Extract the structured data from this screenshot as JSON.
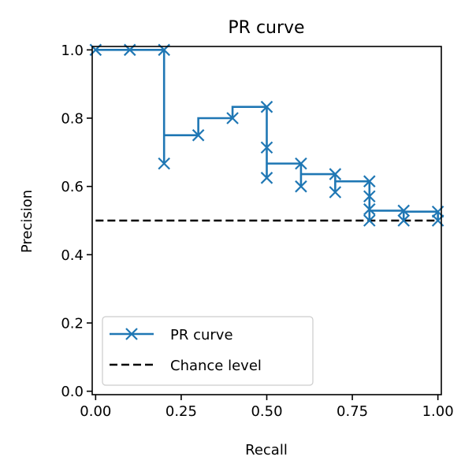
{
  "chart_data": {
    "type": "line",
    "title": "PR curve",
    "xlabel": "Recall",
    "ylabel": "Precision",
    "xlim": [
      -0.01,
      1.01
    ],
    "ylim": [
      -0.01,
      1.01
    ],
    "xticks": [
      0.0,
      0.25,
      0.5,
      0.75,
      1.0
    ],
    "xtick_labels": [
      "0.00",
      "0.25",
      "0.50",
      "0.75",
      "1.00"
    ],
    "yticks": [
      0.0,
      0.2,
      0.4,
      0.6,
      0.8,
      1.0
    ],
    "ytick_labels": [
      "0.0",
      "0.2",
      "0.4",
      "0.6",
      "0.8",
      "1.0"
    ],
    "grid": false,
    "legend_position": "lower-left",
    "series": [
      {
        "name": "PR curve",
        "color": "#1f77b4",
        "style": "solid",
        "marker": "x",
        "drawstyle": "steps-post",
        "points": [
          [
            1.0,
            0.5
          ],
          [
            1.0,
            0.526
          ],
          [
            0.9,
            0.5
          ],
          [
            0.9,
            0.529
          ],
          [
            0.8,
            0.5
          ],
          [
            0.8,
            0.533
          ],
          [
            0.8,
            0.571
          ],
          [
            0.8,
            0.615
          ],
          [
            0.7,
            0.583
          ],
          [
            0.7,
            0.636
          ],
          [
            0.6,
            0.6
          ],
          [
            0.6,
            0.667
          ],
          [
            0.5,
            0.625
          ],
          [
            0.5,
            0.714
          ],
          [
            0.5,
            0.833
          ],
          [
            0.4,
            0.8
          ],
          [
            0.3,
            0.75
          ],
          [
            0.2,
            0.667
          ],
          [
            0.2,
            1.0
          ],
          [
            0.1,
            1.0
          ],
          [
            0.0,
            1.0
          ]
        ]
      },
      {
        "name": "Chance level",
        "color": "#000000",
        "style": "dashed",
        "points": [
          [
            0.0,
            0.5
          ],
          [
            1.0,
            0.5
          ]
        ]
      }
    ]
  }
}
